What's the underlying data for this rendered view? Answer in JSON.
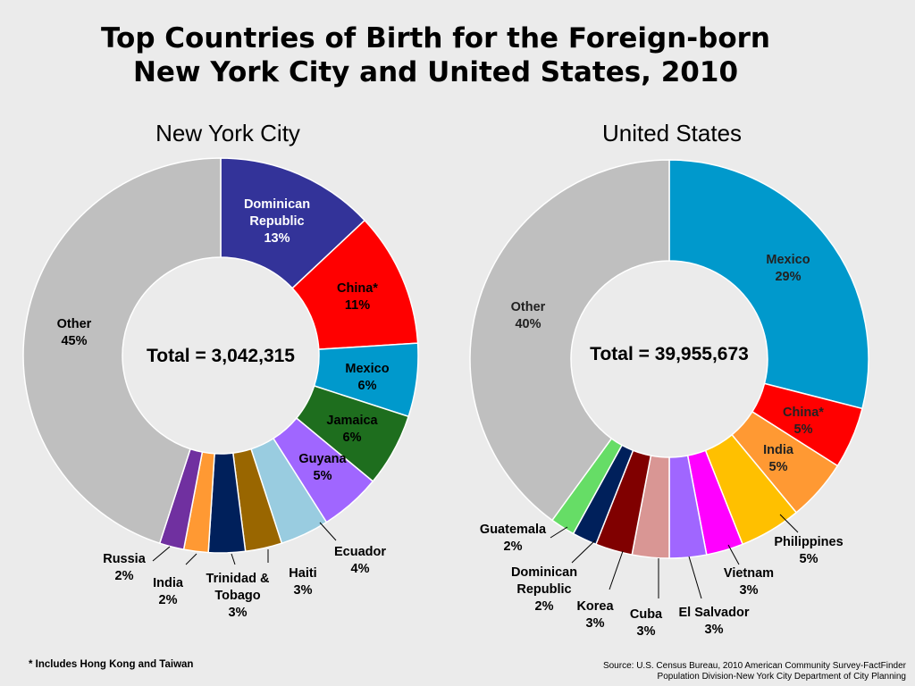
{
  "title": [
    "Top Countries of Birth for the Foreign-born",
    "New York City and United States, 2010"
  ],
  "footnote": "* Includes Hong Kong and Taiwan",
  "source": [
    "Source: U.S. Census Bureau, 2010 American Community Survey-FactFinder",
    "Population Division-New York City Department of City Planning"
  ],
  "chart_data": [
    {
      "type": "pie",
      "subtitle": "New York City",
      "center_label": "Total = 3,042,315",
      "slices": [
        {
          "label": [
            "Dominican",
            "Republic"
          ],
          "value": 13,
          "pct": "13%",
          "color": "#333399"
        },
        {
          "label": [
            "China*"
          ],
          "value": 11,
          "pct": "11%",
          "color": "#ff0000"
        },
        {
          "label": [
            "Mexico"
          ],
          "value": 6,
          "pct": "6%",
          "color": "#0099cc"
        },
        {
          "label": [
            "Jamaica"
          ],
          "value": 6,
          "pct": "6%",
          "color": "#1e6e1e"
        },
        {
          "label": [
            "Guyana"
          ],
          "value": 5,
          "pct": "5%",
          "color": "#a066ff"
        },
        {
          "label": [
            "Ecuador"
          ],
          "value": 4,
          "pct": "4%",
          "color": "#99cce0"
        },
        {
          "label": [
            "Haiti"
          ],
          "value": 3,
          "pct": "3%",
          "color": "#996600"
        },
        {
          "label": [
            "Trinidad &",
            "Tobago"
          ],
          "value": 3,
          "pct": "3%",
          "color": "#00205b"
        },
        {
          "label": [
            "India"
          ],
          "value": 2,
          "pct": "2%",
          "color": "#ff9933"
        },
        {
          "label": [
            "Russia"
          ],
          "value": 2,
          "pct": "2%",
          "color": "#7030a0"
        },
        {
          "label": [
            "Other"
          ],
          "value": 45,
          "pct": "45%",
          "color": "#bfbfbf"
        }
      ]
    },
    {
      "type": "pie",
      "subtitle": "United States",
      "center_label": "Total = 39,955,673",
      "slices": [
        {
          "label": [
            "Mexico"
          ],
          "value": 29,
          "pct": "29%",
          "color": "#0099cc"
        },
        {
          "label": [
            "China*"
          ],
          "value": 5,
          "pct": "5%",
          "color": "#ff0000"
        },
        {
          "label": [
            "India"
          ],
          "value": 5,
          "pct": "5%",
          "color": "#ff9933"
        },
        {
          "label": [
            "Philippines"
          ],
          "value": 5,
          "pct": "5%",
          "color": "#ffc000"
        },
        {
          "label": [
            "Vietnam"
          ],
          "value": 3,
          "pct": "3%",
          "color": "#ff00ff"
        },
        {
          "label": [
            "El Salvador"
          ],
          "value": 3,
          "pct": "3%",
          "color": "#a066ff"
        },
        {
          "label": [
            "Cuba"
          ],
          "value": 3,
          "pct": "3%",
          "color": "#d99694"
        },
        {
          "label": [
            "Korea"
          ],
          "value": 3,
          "pct": "3%",
          "color": "#800000"
        },
        {
          "label": [
            "Dominican",
            "Republic"
          ],
          "value": 2,
          "pct": "2%",
          "color": "#00205b"
        },
        {
          "label": [
            "Guatemala"
          ],
          "value": 2,
          "pct": "2%",
          "color": "#66dd66"
        },
        {
          "label": [
            "Other"
          ],
          "value": 40,
          "pct": "40%",
          "color": "#bfbfbf"
        }
      ]
    }
  ]
}
